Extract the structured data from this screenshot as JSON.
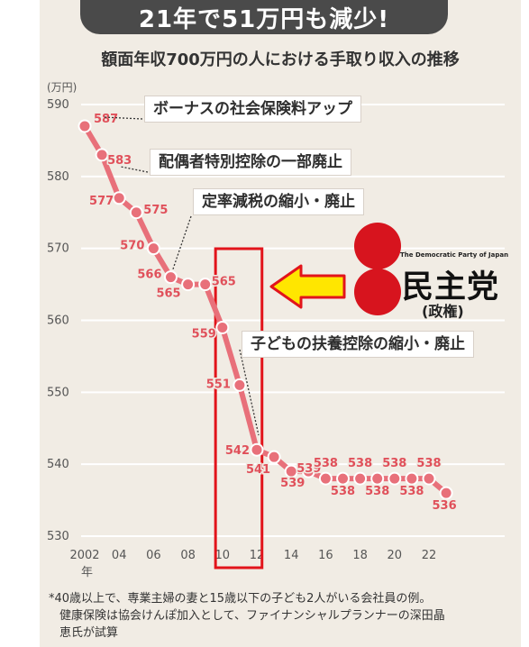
{
  "banner": "21年で51万円も減少!",
  "subtitle": "額面年収700万円の人における手取り収入の推移",
  "unit": "(万円)",
  "year_suffix": "年",
  "callouts": [
    "ボーナスの社会保険料アップ",
    "配偶者特別控除の一部廃止",
    "定率減税の縮小・廃止",
    "子どもの扶養控除の縮小・廃止"
  ],
  "party": {
    "english": "The Democratic Party of Japan",
    "name": "民主党",
    "note": "(政権)",
    "logo_color": "#d7141e"
  },
  "footnote": [
    "*40歳以上で、専業主婦の妻と15歳以下の子ども2人がいる会社員の例。",
    "健康保険は協会けんぽ加入として、ファイナンシャルプランナーの深田晶",
    "恵氏が試算"
  ],
  "colors": {
    "line": "#e8707a",
    "label": "#e0505a",
    "highlight_box": "#e2141b",
    "arrow": "#ffe600",
    "gridline": "#ffffff"
  },
  "chart_data": {
    "type": "line",
    "title": "額面年収700万円の人における手取り収入の推移",
    "ylabel": "(万円)",
    "ylim": [
      530,
      590
    ],
    "y_ticks": [
      530,
      540,
      550,
      560,
      570,
      580,
      590
    ],
    "x_ticks": [
      {
        "year": 2002,
        "label": "2002"
      },
      {
        "year": 2004,
        "label": "04"
      },
      {
        "year": 2006,
        "label": "06"
      },
      {
        "year": 2008,
        "label": "08"
      },
      {
        "year": 2010,
        "label": "10"
      },
      {
        "year": 2012,
        "label": "12"
      },
      {
        "year": 2014,
        "label": "14"
      },
      {
        "year": 2016,
        "label": "16"
      },
      {
        "year": 2018,
        "label": "18"
      },
      {
        "year": 2020,
        "label": "20"
      },
      {
        "year": 2022,
        "label": "22"
      }
    ],
    "series": [
      {
        "x": [
          2002,
          2003,
          2004,
          2005,
          2006,
          2007,
          2008,
          2009,
          2010,
          2011,
          2012,
          2013,
          2014,
          2015,
          2016,
          2017,
          2018,
          2019,
          2020,
          2021,
          2022,
          2023
        ],
        "values": [
          587,
          583,
          577,
          575,
          570,
          566,
          565,
          565,
          559,
          551,
          542,
          541,
          539,
          539,
          538,
          538,
          538,
          538,
          538,
          538,
          538,
          536
        ],
        "labels": [
          "587",
          "583",
          "577",
          "575",
          "570",
          "566",
          "565",
          "565",
          "559",
          "551",
          "542",
          "541",
          "539",
          "539",
          "538",
          "538",
          "538",
          "538",
          "538",
          "538",
          "538",
          "536"
        ]
      }
    ],
    "highlight_years": [
      2009.6,
      2012.3
    ],
    "grid": true
  }
}
